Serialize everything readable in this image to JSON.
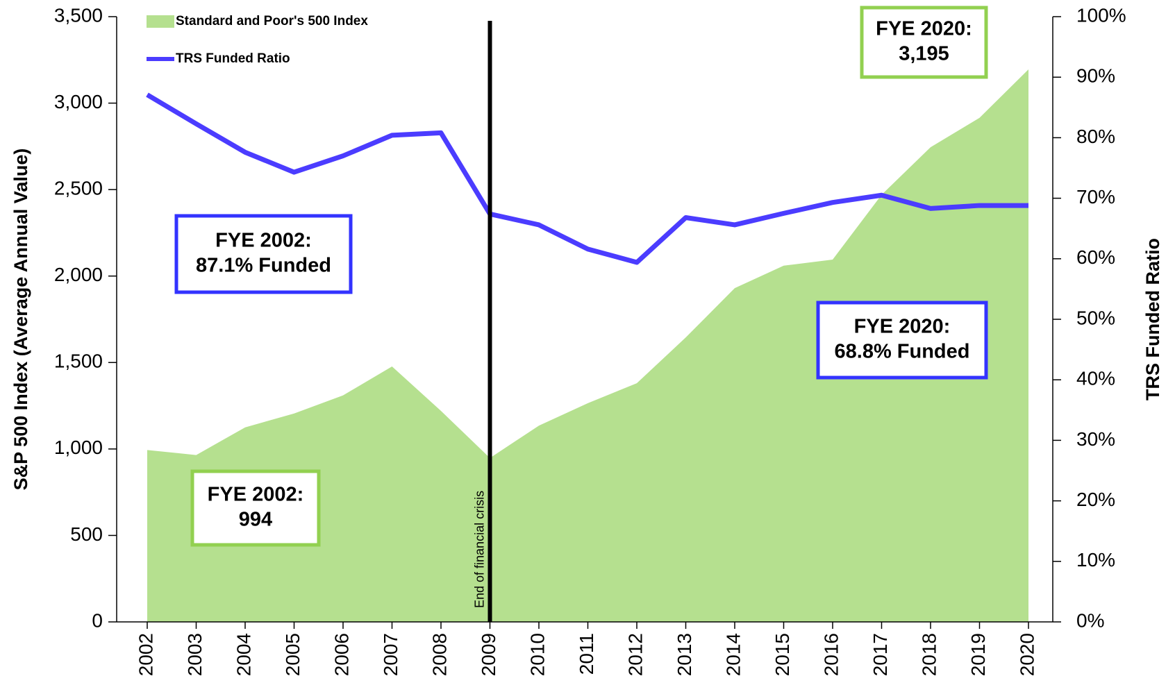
{
  "chart_data": {
    "type": "line",
    "x": [
      "2002",
      "2003",
      "2004",
      "2005",
      "2006",
      "2007",
      "2008",
      "2009",
      "2010",
      "2011",
      "2012",
      "2013",
      "2014",
      "2015",
      "2016",
      "2017",
      "2018",
      "2019",
      "2020"
    ],
    "series": [
      {
        "name": "Standard and Poor's 500 Index",
        "type": "area",
        "axis": "y",
        "color": "#b5e08f",
        "values": [
          994,
          965,
          1125,
          1205,
          1310,
          1477,
          1220,
          948,
          1135,
          1265,
          1380,
          1645,
          1930,
          2060,
          2095,
          2470,
          2745,
          2915,
          3195
        ]
      },
      {
        "name": "TRS Funded Ratio",
        "type": "line",
        "axis": "y2",
        "color": "#4b3cff",
        "values": [
          87.1,
          82.3,
          77.6,
          74.3,
          77.0,
          80.4,
          80.8,
          67.4,
          65.6,
          61.6,
          59.4,
          66.8,
          65.6,
          67.5,
          69.3,
          70.5,
          68.3,
          68.8,
          68.8
        ]
      }
    ],
    "ylabel": "S&P 500 Index (Average Annual Value)",
    "y2label": "TRS Funded Ratio",
    "ylim": [
      0,
      3500
    ],
    "yticks": [
      0,
      500,
      {
        "value": 1000,
        "label": "1,000"
      },
      {
        "value": 1500,
        "label": "1,500"
      },
      {
        "value": 2000,
        "label": "2,000"
      },
      {
        "value": 2500,
        "label": "2,500"
      },
      {
        "value": 3000,
        "label": "3,000"
      },
      {
        "value": 3500,
        "label": "3,500"
      }
    ],
    "y2lim": [
      0,
      100
    ],
    "y2ticks": [
      {
        "value": 0,
        "label": "0%"
      },
      {
        "value": 10,
        "label": "10%"
      },
      {
        "value": 20,
        "label": "20%"
      },
      {
        "value": 30,
        "label": "30%"
      },
      {
        "value": 40,
        "label": "40%"
      },
      {
        "value": 50,
        "label": "50%"
      },
      {
        "value": 60,
        "label": "60%"
      },
      {
        "value": 70,
        "label": "70%"
      },
      {
        "value": 80,
        "label": "80%"
      },
      {
        "value": 90,
        "label": "90%"
      },
      {
        "value": 100,
        "label": "100%"
      }
    ],
    "vline": {
      "x": "2009",
      "label": "End of financial crisis"
    },
    "legend": "upper left",
    "annotations": [
      {
        "lines": [
          "FYE 2020:",
          "3,195"
        ],
        "color": "#92d050"
      },
      {
        "lines": [
          "FYE 2002:",
          "87.1% Funded"
        ],
        "color": "#3333ff"
      },
      {
        "lines": [
          "FYE 2020:",
          "68.8% Funded"
        ],
        "color": "#3333ff"
      },
      {
        "lines": [
          "FYE 2002:",
          "994"
        ],
        "color": "#92d050"
      }
    ]
  }
}
